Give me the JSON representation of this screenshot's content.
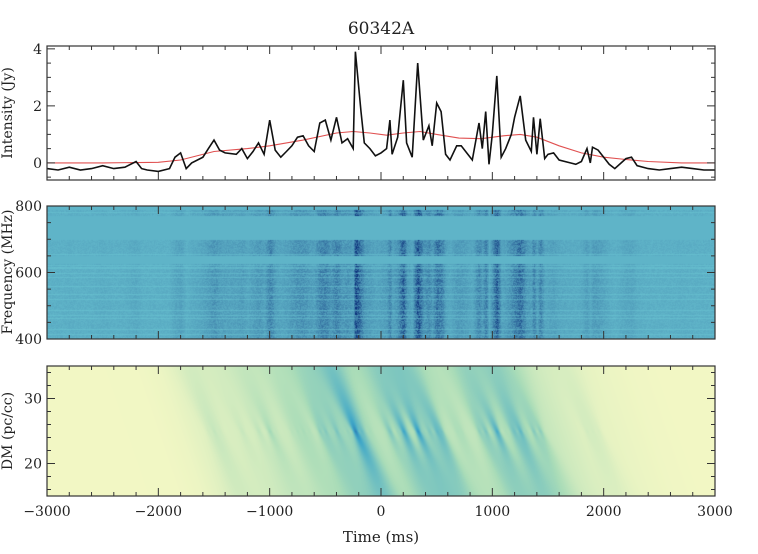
{
  "title": "60342A",
  "chart_data": [
    {
      "type": "line",
      "panel": "top",
      "ylabel": "Intensity (Jy)",
      "xlim": [
        -3000,
        3000
      ],
      "ylim": [
        -0.6,
        4.1
      ],
      "xticks": [
        -3000,
        -2000,
        -1000,
        0,
        1000,
        2000,
        3000
      ],
      "yticks": [
        0,
        2,
        4
      ],
      "ytick_labels": [
        "0",
        "2",
        "4"
      ],
      "series": [
        {
          "color": "#111111",
          "x": [
            -3000,
            -2900,
            -2800,
            -2700,
            -2600,
            -2500,
            -2400,
            -2300,
            -2200,
            -2150,
            -2100,
            -2000,
            -1900,
            -1850,
            -1800,
            -1750,
            -1700,
            -1600,
            -1550,
            -1500,
            -1450,
            -1400,
            -1300,
            -1250,
            -1200,
            -1150,
            -1100,
            -1050,
            -1000,
            -950,
            -900,
            -850,
            -800,
            -750,
            -700,
            -650,
            -600,
            -550,
            -500,
            -450,
            -400,
            -350,
            -300,
            -250,
            -230,
            -180,
            -150,
            -100,
            -50,
            0,
            50,
            80,
            100,
            150,
            200,
            230,
            280,
            330,
            380,
            430,
            460,
            500,
            540,
            580,
            620,
            680,
            720,
            780,
            820,
            880,
            910,
            940,
            970,
            1000,
            1040,
            1080,
            1120,
            1170,
            1200,
            1250,
            1300,
            1350,
            1370,
            1400,
            1430,
            1470,
            1500,
            1550,
            1600,
            1700,
            1750,
            1800,
            1850,
            1880,
            1900,
            1950,
            2000,
            2050,
            2100,
            2200,
            2250,
            2300,
            2400,
            2500,
            2600,
            2700,
            2800,
            2900,
            3000
          ],
          "y": [
            -0.2,
            -0.25,
            -0.15,
            -0.25,
            -0.2,
            -0.1,
            -0.2,
            -0.15,
            0.05,
            -0.2,
            -0.25,
            -0.3,
            -0.2,
            0.2,
            0.35,
            -0.2,
            0.0,
            0.2,
            0.5,
            0.8,
            0.45,
            0.35,
            0.3,
            0.5,
            0.15,
            0.4,
            0.7,
            0.3,
            1.5,
            0.45,
            0.2,
            0.4,
            0.6,
            0.9,
            0.95,
            0.6,
            0.4,
            1.4,
            1.5,
            0.8,
            1.6,
            0.7,
            0.85,
            0.5,
            3.9,
            1.8,
            0.7,
            0.5,
            0.25,
            0.35,
            0.5,
            1.5,
            0.3,
            0.9,
            2.9,
            0.7,
            0.2,
            3.5,
            0.8,
            1.3,
            0.6,
            2.1,
            1.8,
            0.3,
            0.1,
            0.6,
            0.6,
            0.3,
            0.1,
            1.4,
            0.5,
            1.8,
            -0.05,
            1.0,
            3.05,
            0.2,
            0.5,
            1.0,
            1.6,
            2.35,
            0.8,
            0.4,
            1.6,
            0.3,
            1.55,
            0.15,
            0.3,
            0.35,
            0.1,
            0.0,
            -0.05,
            0.05,
            0.5,
            0.0,
            0.55,
            0.45,
            0.2,
            -0.05,
            -0.2,
            0.15,
            0.2,
            -0.1,
            -0.2,
            -0.25,
            -0.2,
            -0.15,
            -0.2,
            -0.25,
            -0.25
          ]
        },
        {
          "color": "#e05050",
          "x": [
            -3000,
            -2500,
            -2000,
            -1800,
            -1500,
            -1200,
            -1000,
            -700,
            -400,
            -250,
            -100,
            50,
            200,
            350,
            500,
            700,
            900,
            1100,
            1250,
            1400,
            1600,
            1800,
            2000,
            2200,
            2400,
            2700,
            3000
          ],
          "y": [
            0,
            0,
            0.02,
            0.1,
            0.4,
            0.5,
            0.6,
            0.8,
            1.05,
            1.1,
            1.05,
            0.97,
            1.05,
            1.1,
            1.0,
            0.87,
            0.85,
            0.95,
            1.0,
            0.9,
            0.6,
            0.35,
            0.2,
            0.12,
            0.05,
            0,
            0
          ]
        }
      ]
    },
    {
      "type": "heatmap",
      "panel": "middle",
      "ylabel": "Frequency (MHz)",
      "xlim": [
        -3000,
        3000
      ],
      "ylim": [
        400,
        800
      ],
      "yticks": [
        400,
        600,
        800
      ],
      "ytick_labels": [
        "400",
        "600",
        "800"
      ],
      "colormap": [
        "#6cc8d4",
        "#0b2f7a"
      ]
    },
    {
      "type": "heatmap",
      "panel": "bottom",
      "xlabel": "Time (ms)",
      "ylabel": "DM (pc/cc)",
      "xlim": [
        -3000,
        3000
      ],
      "ylim": [
        15,
        35
      ],
      "yticks": [
        20,
        30
      ],
      "ytick_labels": [
        "20",
        "30"
      ],
      "xtick_labels": [
        "−3000",
        "−2000",
        "−1000",
        "0",
        "1000",
        "2000",
        "3000"
      ],
      "colormap": [
        "#f2f7c4",
        "#a9dcb8",
        "#41a8c8",
        "#1d5fa8",
        "#0c2c84"
      ]
    }
  ]
}
